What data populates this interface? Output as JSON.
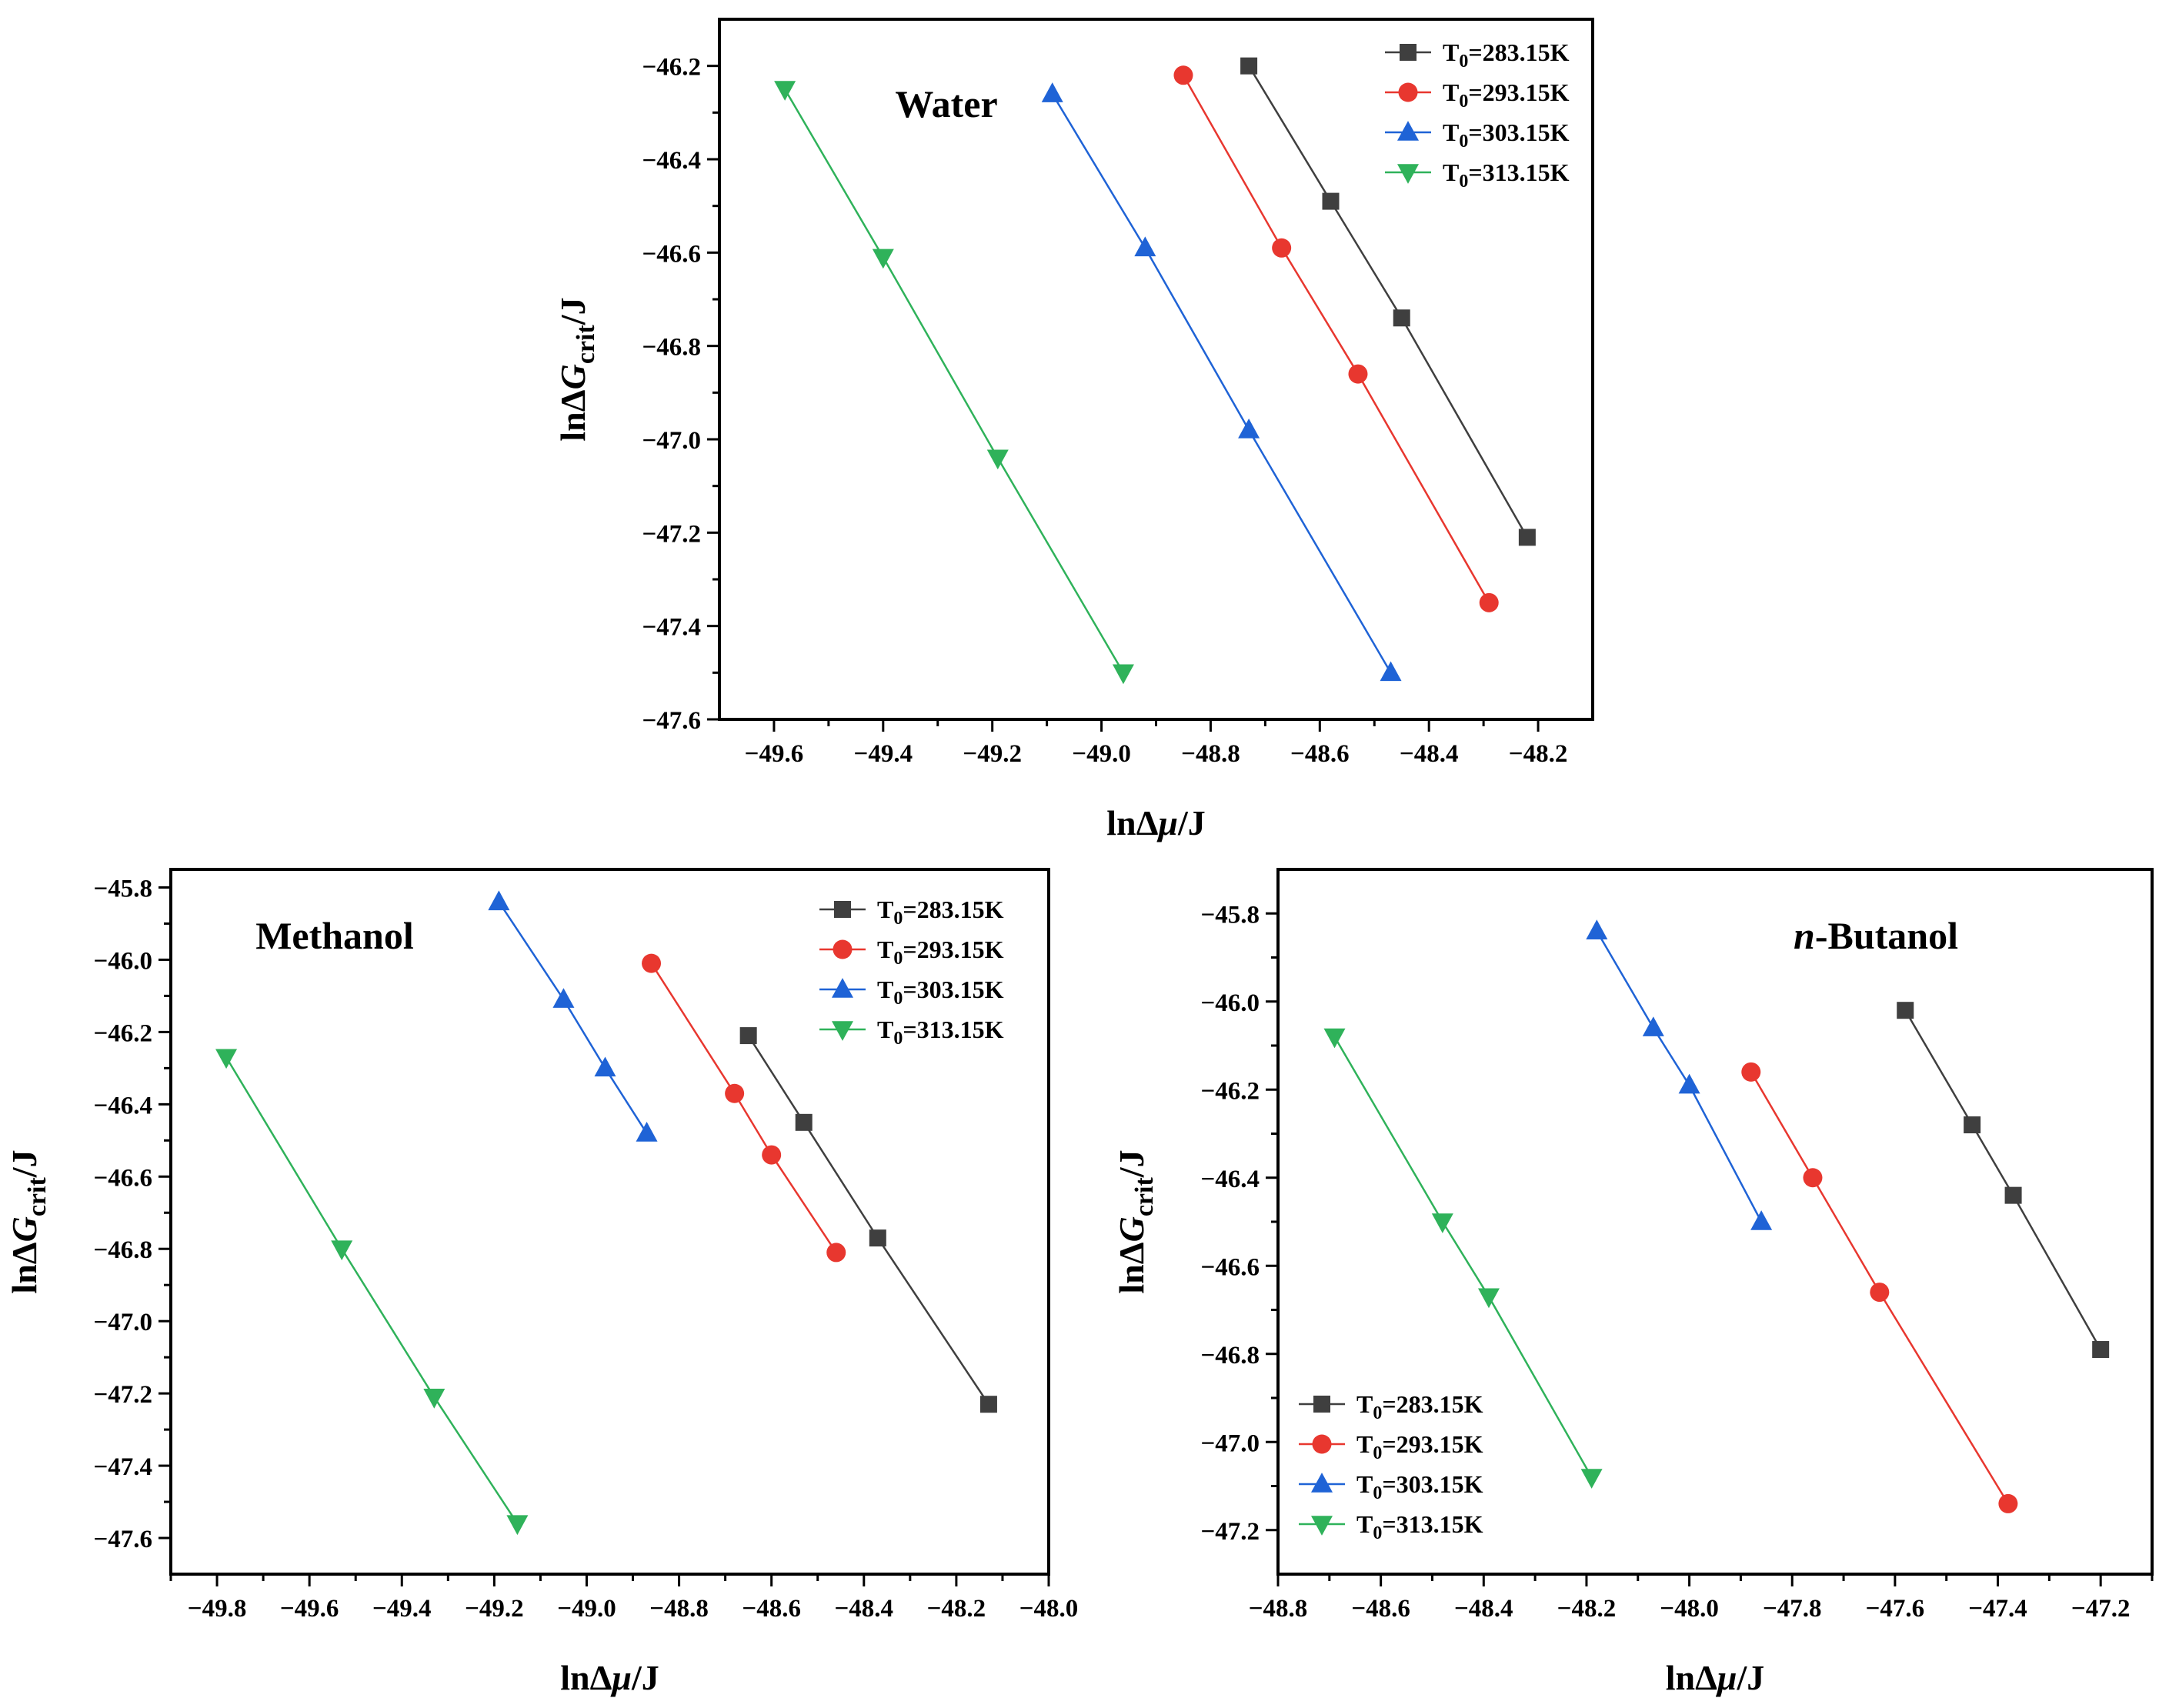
{
  "chart_data": [
    {
      "type": "line",
      "annotation": "Water",
      "xlabel": "lnΔμ/J",
      "ylabel": "lnΔGcrit/J",
      "xlim": [
        -49.7,
        -48.1
      ],
      "ylim": [
        -47.6,
        -46.1
      ],
      "xticks": [
        -49.6,
        -49.4,
        -49.2,
        -49.0,
        -48.8,
        -48.6,
        -48.4,
        -48.2
      ],
      "yticks": [
        -47.6,
        -47.4,
        -47.2,
        -47.0,
        -46.8,
        -46.6,
        -46.4,
        -46.2
      ],
      "legend_position": "top-right",
      "series": [
        {
          "name": "T0=283.15K",
          "marker": "square",
          "color": "#3f3f3f",
          "x": [
            -48.73,
            -48.58,
            -48.45,
            -48.22
          ],
          "y": [
            -46.2,
            -46.49,
            -46.74,
            -47.21
          ]
        },
        {
          "name": "T0=293.15K",
          "marker": "circle",
          "color": "#e8372f",
          "x": [
            -48.85,
            -48.67,
            -48.53,
            -48.29
          ],
          "y": [
            -46.22,
            -46.59,
            -46.86,
            -47.35
          ]
        },
        {
          "name": "T0=303.15K",
          "marker": "triangle-up",
          "color": "#1f63d6",
          "x": [
            -49.09,
            -48.92,
            -48.73,
            -48.47
          ],
          "y": [
            -46.26,
            -46.59,
            -46.98,
            -47.5
          ]
        },
        {
          "name": "T0=313.15K",
          "marker": "triangle-down",
          "color": "#2fb25a",
          "x": [
            -49.58,
            -49.4,
            -49.19,
            -48.96
          ],
          "y": [
            -46.25,
            -46.61,
            -47.04,
            -47.5
          ]
        }
      ]
    },
    {
      "type": "line",
      "annotation": "Methanol",
      "xlabel": "lnΔμ/J",
      "ylabel": "lnΔGcrit/J",
      "xlim": [
        -49.9,
        -48.0
      ],
      "ylim": [
        -47.7,
        -45.75
      ],
      "xticks": [
        -49.8,
        -49.6,
        -49.4,
        -49.2,
        -49.0,
        -48.8,
        -48.6,
        -48.4,
        -48.2,
        -48.0
      ],
      "yticks": [
        -47.6,
        -47.4,
        -47.2,
        -47.0,
        -46.8,
        -46.6,
        -46.4,
        -46.2,
        -46.0,
        -45.8
      ],
      "legend_position": "top-right",
      "series": [
        {
          "name": "T0=283.15K",
          "marker": "square",
          "color": "#3f3f3f",
          "x": [
            -48.65,
            -48.53,
            -48.37,
            -48.13
          ],
          "y": [
            -46.21,
            -46.45,
            -46.77,
            -47.23
          ]
        },
        {
          "name": "T0=293.15K",
          "marker": "circle",
          "color": "#e8372f",
          "x": [
            -48.86,
            -48.68,
            -48.6,
            -48.46
          ],
          "y": [
            -46.01,
            -46.37,
            -46.54,
            -46.81
          ]
        },
        {
          "name": "T0=303.15K",
          "marker": "triangle-up",
          "color": "#1f63d6",
          "x": [
            -49.19,
            -49.05,
            -48.96,
            -48.87
          ],
          "y": [
            -45.84,
            -46.11,
            -46.3,
            -46.48
          ]
        },
        {
          "name": "T0=313.15K",
          "marker": "triangle-down",
          "color": "#2fb25a",
          "x": [
            -49.78,
            -49.53,
            -49.33,
            -49.15
          ],
          "y": [
            -46.27,
            -46.8,
            -47.21,
            -47.56
          ]
        }
      ]
    },
    {
      "type": "line",
      "annotation": "n-Butanol",
      "annotation_prefix": "n",
      "annotation_suffix": "-Butanol",
      "xlabel": "lnΔμ/J",
      "ylabel": "lnΔGcrit/J",
      "xlim": [
        -48.8,
        -47.1
      ],
      "ylim": [
        -47.3,
        -45.7
      ],
      "xticks": [
        -48.8,
        -48.6,
        -48.4,
        -48.2,
        -48.0,
        -47.8,
        -47.6,
        -47.4,
        -47.2
      ],
      "yticks": [
        -47.2,
        -47.0,
        -46.8,
        -46.6,
        -46.4,
        -46.2,
        -46.0,
        -45.8
      ],
      "legend_position": "bottom-left",
      "series": [
        {
          "name": "T0=283.15K",
          "marker": "square",
          "color": "#3f3f3f",
          "x": [
            -47.58,
            -47.45,
            -47.37,
            -47.2
          ],
          "y": [
            -46.02,
            -46.28,
            -46.44,
            -46.79
          ]
        },
        {
          "name": "T0=293.15K",
          "marker": "circle",
          "color": "#e8372f",
          "x": [
            -47.88,
            -47.76,
            -47.63,
            -47.38
          ],
          "y": [
            -46.16,
            -46.4,
            -46.66,
            -47.14
          ]
        },
        {
          "name": "T0=303.15K",
          "marker": "triangle-up",
          "color": "#1f63d6",
          "x": [
            -48.18,
            -48.07,
            -48.0,
            -47.86
          ],
          "y": [
            -45.84,
            -46.06,
            -46.19,
            -46.5
          ]
        },
        {
          "name": "T0=313.15K",
          "marker": "triangle-down",
          "color": "#2fb25a",
          "x": [
            -48.69,
            -48.48,
            -48.39,
            -48.19
          ],
          "y": [
            -46.08,
            -46.5,
            -46.67,
            -47.08
          ]
        }
      ]
    }
  ]
}
